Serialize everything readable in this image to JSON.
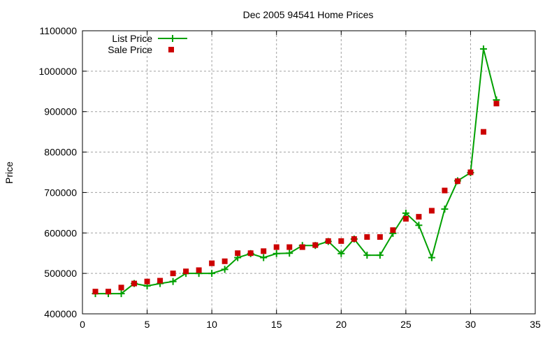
{
  "chart_data": {
    "type": "line",
    "title": "Dec 2005 94541 Home Prices",
    "xlabel": "",
    "ylabel": "Price",
    "xlim": [
      0,
      35
    ],
    "ylim": [
      400000,
      1100000
    ],
    "xticks": [
      0,
      5,
      10,
      15,
      20,
      25,
      30,
      35
    ],
    "yticks": [
      400000,
      500000,
      600000,
      700000,
      800000,
      900000,
      1000000,
      1100000
    ],
    "grid": true,
    "legend_placement": "top-left",
    "x": [
      1,
      2,
      3,
      4,
      5,
      6,
      7,
      8,
      9,
      10,
      11,
      12,
      13,
      14,
      15,
      16,
      17,
      18,
      19,
      20,
      21,
      22,
      23,
      24,
      25,
      26,
      27,
      28,
      29,
      30,
      31,
      32
    ],
    "series": [
      {
        "name": "List Price",
        "style": "linespoints",
        "marker": "plus",
        "color": "#00a000",
        "values": [
          450000,
          450000,
          450000,
          475000,
          469000,
          475000,
          480000,
          500000,
          500000,
          500000,
          510000,
          539000,
          549000,
          539000,
          549000,
          550000,
          569000,
          569000,
          579000,
          549000,
          585000,
          545000,
          545000,
          599000,
          649000,
          619000,
          539000,
          659000,
          729000,
          749000,
          1055000,
          929000
        ]
      },
      {
        "name": "Sale Price",
        "style": "points",
        "marker": "square",
        "color": "#cc0000",
        "values": [
          455000,
          455000,
          465000,
          475000,
          480000,
          482000,
          500000,
          505000,
          508000,
          525000,
          530000,
          550000,
          550000,
          555000,
          565000,
          565000,
          565000,
          570000,
          580000,
          580000,
          585000,
          590000,
          590000,
          607000,
          635000,
          640000,
          655000,
          705000,
          728000,
          750000,
          850000,
          920000
        ]
      }
    ]
  }
}
